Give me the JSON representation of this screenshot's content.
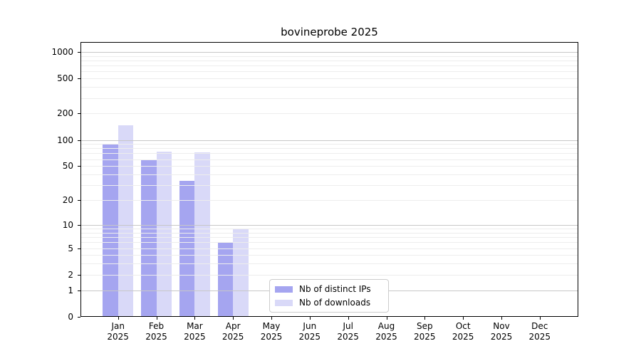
{
  "chart_data": {
    "type": "bar",
    "title": "bovineprobe 2025",
    "categories": [
      {
        "month": "Jan",
        "year": "2025"
      },
      {
        "month": "Feb",
        "year": "2025"
      },
      {
        "month": "Mar",
        "year": "2025"
      },
      {
        "month": "Apr",
        "year": "2025"
      },
      {
        "month": "May",
        "year": "2025"
      },
      {
        "month": "Jun",
        "year": "2025"
      },
      {
        "month": "Jul",
        "year": "2025"
      },
      {
        "month": "Aug",
        "year": "2025"
      },
      {
        "month": "Sep",
        "year": "2025"
      },
      {
        "month": "Oct",
        "year": "2025"
      },
      {
        "month": "Nov",
        "year": "2025"
      },
      {
        "month": "Dec",
        "year": "2025"
      }
    ],
    "series": [
      {
        "name": "Nb of distinct IPs",
        "color": "#a5a5f0",
        "values": [
          88,
          60,
          34,
          6,
          0,
          0,
          0,
          0,
          0,
          0,
          0,
          0
        ]
      },
      {
        "name": "Nb of downloads",
        "color": "#d9d9f8",
        "values": [
          148,
          73,
          72,
          9,
          0,
          0,
          0,
          0,
          0,
          0,
          0,
          0
        ]
      }
    ],
    "y_ticks": [
      0,
      1,
      2,
      5,
      10,
      20,
      50,
      100,
      200,
      500,
      1000
    ],
    "y_scale": "log10(value+1)",
    "ylim": [
      0,
      1300
    ],
    "xlabel": "",
    "ylabel": "",
    "grid": "major and minor horizontal gridlines, drawn above bars",
    "legend_position": "lower center-left inside plot"
  }
}
